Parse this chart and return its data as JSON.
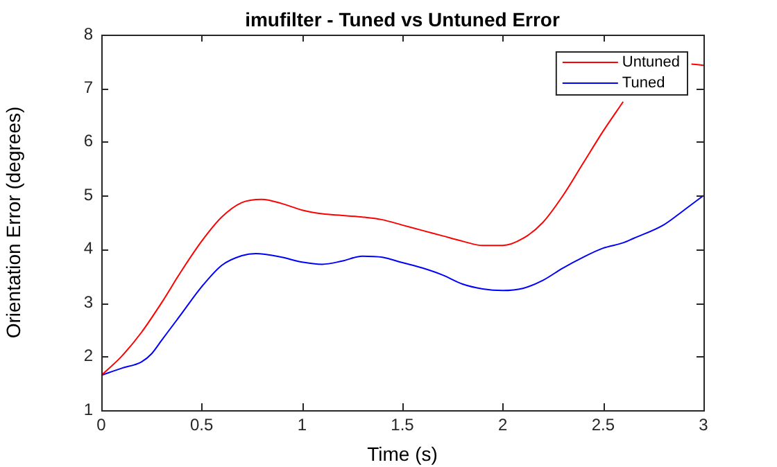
{
  "chart_data": {
    "type": "line",
    "title": "imufilter - Tuned vs Untuned Error",
    "xlabel": "Time (s)",
    "ylabel": "Orientation Error (degrees)",
    "xlim": [
      0,
      3
    ],
    "xticks": [
      0,
      0.5,
      1,
      1.5,
      2,
      2.5,
      3
    ],
    "ylim": [
      1,
      8
    ],
    "yticks": [
      1,
      2,
      3,
      4,
      5,
      6,
      7,
      8
    ],
    "grid": false,
    "legend": "top right",
    "marker": "none",
    "line_style": "solid",
    "series": [
      {
        "name": "Untuned",
        "color": "#ff0000",
        "x": [
          0,
          0.1,
          0.2,
          0.3,
          0.4,
          0.5,
          0.6,
          0.7,
          0.8,
          0.9,
          1.0,
          1.1,
          1.2,
          1.3,
          1.4,
          1.5,
          1.6,
          1.7,
          1.8,
          1.9,
          2.0,
          2.1,
          2.2,
          2.3,
          2.4,
          2.5,
          2.6,
          2.65,
          2.8,
          2.94,
          3.0
        ],
        "values": [
          1.65,
          2.0,
          2.45,
          3.0,
          3.6,
          4.15,
          4.6,
          4.87,
          4.93,
          4.85,
          4.73,
          4.66,
          4.63,
          4.6,
          4.55,
          4.45,
          4.35,
          4.25,
          4.15,
          4.07,
          4.07,
          4.2,
          4.5,
          5.0,
          5.6,
          6.2,
          6.75,
          null,
          null,
          7.45,
          7.43
        ]
      },
      {
        "name": "Tuned",
        "color": "#0000ff",
        "x": [
          0,
          0.1,
          0.2,
          0.25,
          0.3,
          0.4,
          0.5,
          0.6,
          0.7,
          0.77,
          0.9,
          1.0,
          1.1,
          1.2,
          1.3,
          1.4,
          1.5,
          1.6,
          1.7,
          1.8,
          1.9,
          2.0,
          2.1,
          2.2,
          2.3,
          2.4,
          2.5,
          2.6,
          2.65,
          2.8,
          2.9,
          3.0
        ],
        "values": [
          1.65,
          1.78,
          1.9,
          2.05,
          2.3,
          2.8,
          3.3,
          3.7,
          3.88,
          3.92,
          3.85,
          3.76,
          3.72,
          3.78,
          3.87,
          3.85,
          3.75,
          3.65,
          3.52,
          3.35,
          3.26,
          3.23,
          3.27,
          3.42,
          3.65,
          3.85,
          4.02,
          4.12,
          4.2,
          4.45,
          4.72,
          5.0
        ]
      }
    ]
  }
}
